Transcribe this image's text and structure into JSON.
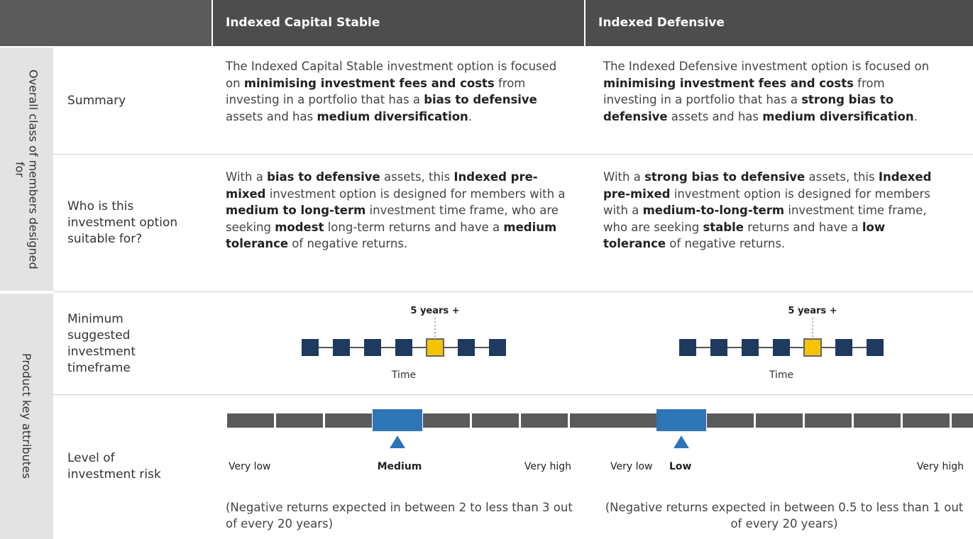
{
  "header": {
    "columns": [
      "Indexed Capital Stable",
      "Indexed Defensive"
    ]
  },
  "groups": [
    "Overall class of members designed for",
    "Product key attributes"
  ],
  "rows": [
    {
      "label": "Summary",
      "cells": [
        [
          {
            "text": "The Indexed Capital Stable investment option is focused on "
          },
          {
            "text": "minimising investment fees and costs",
            "bold": true
          },
          {
            "text": " from investing in a portfolio that has a "
          },
          {
            "text": "bias to defensive",
            "bold": true
          },
          {
            "text": " assets and has "
          },
          {
            "text": "medium diversification",
            "bold": true
          },
          {
            "text": "."
          }
        ],
        [
          {
            "text": "The Indexed Defensive investment option is focused on "
          },
          {
            "text": "minimising investment fees and costs",
            "bold": true
          },
          {
            "text": " from investing in a portfolio that has a "
          },
          {
            "text": "strong bias to defensive",
            "bold": true
          },
          {
            "text": " assets and has "
          },
          {
            "text": "medium diversification",
            "bold": true
          },
          {
            "text": "."
          }
        ]
      ]
    },
    {
      "label": "Who is this investment option suitable for?",
      "cells": [
        [
          {
            "text": "With a "
          },
          {
            "text": "bias to defensive",
            "bold": true
          },
          {
            "text": " assets, this "
          },
          {
            "text": "Indexed pre-mixed",
            "bold": true
          },
          {
            "text": " investment option is designed for members with a "
          },
          {
            "text": "medium to long-term",
            "bold": true
          },
          {
            "text": " investment time frame, who are seeking "
          },
          {
            "text": "modest",
            "bold": true
          },
          {
            "text": " long-term returns and have a "
          },
          {
            "text": "medium tolerance",
            "bold": true
          },
          {
            "text": " of negative returns."
          }
        ],
        [
          {
            "text": "With a "
          },
          {
            "text": "strong bias to defensive",
            "bold": true
          },
          {
            "text": " assets, this "
          },
          {
            "text": "Indexed pre-mixed",
            "bold": true
          },
          {
            "text": " investment option is designed for members with a "
          },
          {
            "text": "medium-to-long-term",
            "bold": true
          },
          {
            "text": " investment time frame, who are seeking "
          },
          {
            "text": "stable",
            "bold": true
          },
          {
            "text": " returns and have a "
          },
          {
            "text": "low tolerance",
            "bold": true
          },
          {
            "text": " of negative returns."
          }
        ]
      ]
    },
    {
      "label": "Minimum suggested investment timeframe",
      "cells": [
        {
          "marker_label": "5 years +",
          "axis_label": "Time"
        },
        {
          "marker_label": "5 years +",
          "axis_label": "Time"
        }
      ]
    },
    {
      "label": "Level of investment risk",
      "cells": [
        {
          "labels": [
            "Very low",
            "Medium",
            "Very high"
          ],
          "note": "(Negative returns expected in between 2 to less than 3 out of every 20 years)"
        },
        {
          "labels": [
            "Very low",
            "Low",
            "Very high"
          ],
          "note": "(Negative returns expected in between 0.5 to less than 1 out of every 20 years)"
        }
      ]
    }
  ]
}
